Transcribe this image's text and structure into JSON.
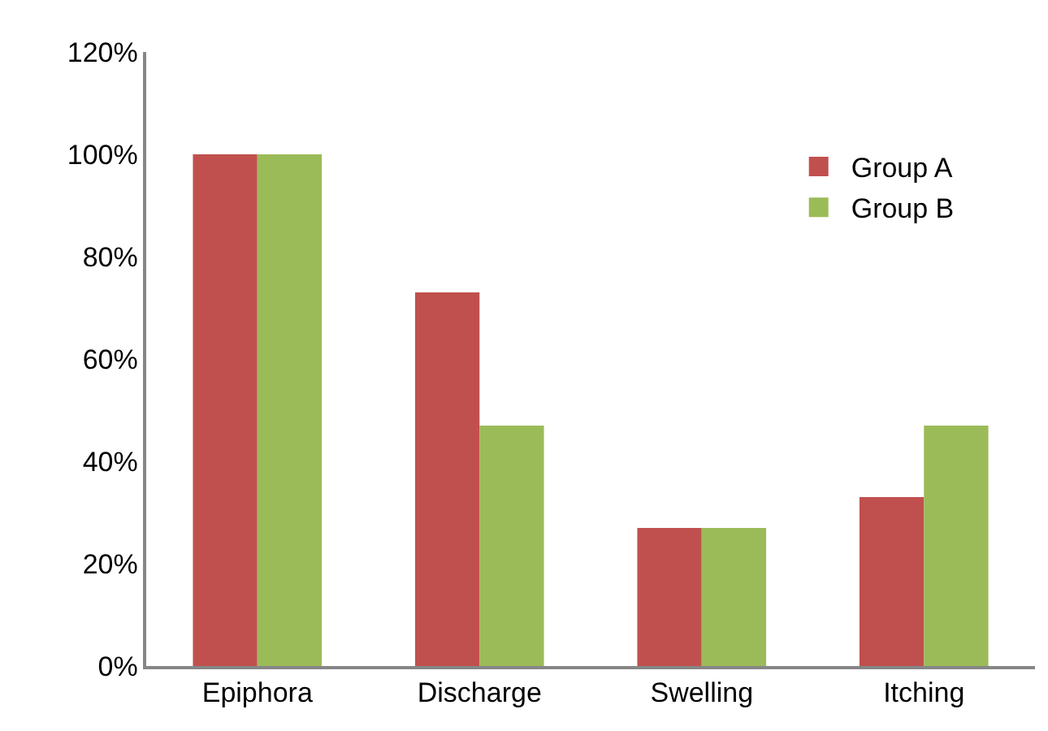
{
  "chart_data": {
    "type": "bar",
    "categories": [
      "Epiphora",
      "Discharge",
      "Swelling",
      "Itching"
    ],
    "series": [
      {
        "name": "Group A",
        "color": "#c0504d",
        "values": [
          100,
          73,
          27,
          33
        ]
      },
      {
        "name": "Group B",
        "color": "#9bbb59",
        "values": [
          100,
          47,
          27,
          47
        ]
      }
    ],
    "ylim": [
      0,
      120
    ],
    "yticks": [
      {
        "value": 0,
        "label": "0%"
      },
      {
        "value": 20,
        "label": "20%"
      },
      {
        "value": 40,
        "label": "40%"
      },
      {
        "value": 60,
        "label": "60%"
      },
      {
        "value": 80,
        "label": "80%"
      },
      {
        "value": 100,
        "label": "100%"
      },
      {
        "value": 120,
        "label": "120%"
      }
    ],
    "grid": false,
    "legend": "top right"
  }
}
